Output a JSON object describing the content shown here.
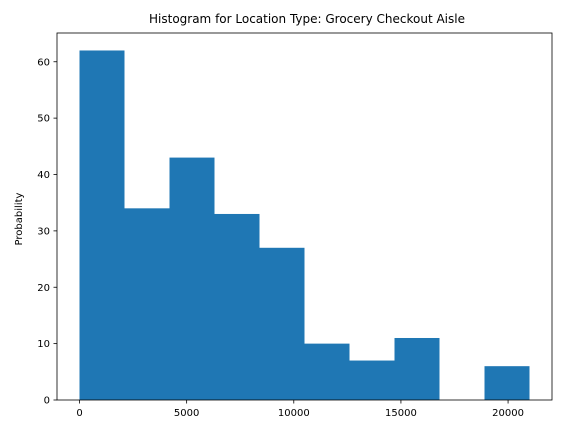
{
  "chart_data": {
    "type": "bar",
    "title": "Histogram for Location Type: Grocery Checkout Aisle",
    "xlabel": "",
    "ylabel": "Probability",
    "bin_edges": [
      0,
      2100,
      4200,
      6300,
      8400,
      10500,
      12600,
      14700,
      16800,
      18900,
      21000
    ],
    "values": [
      62,
      34,
      43,
      33,
      27,
      10,
      7,
      11,
      0,
      6
    ],
    "xlim": [
      -1050,
      22050
    ],
    "ylim": [
      0,
      65.1
    ],
    "xticks": [
      0,
      5000,
      10000,
      15000,
      20000
    ],
    "yticks": [
      0,
      10,
      20,
      30,
      40,
      50,
      60
    ],
    "grid": false,
    "bar_color": "#1f77b4"
  }
}
